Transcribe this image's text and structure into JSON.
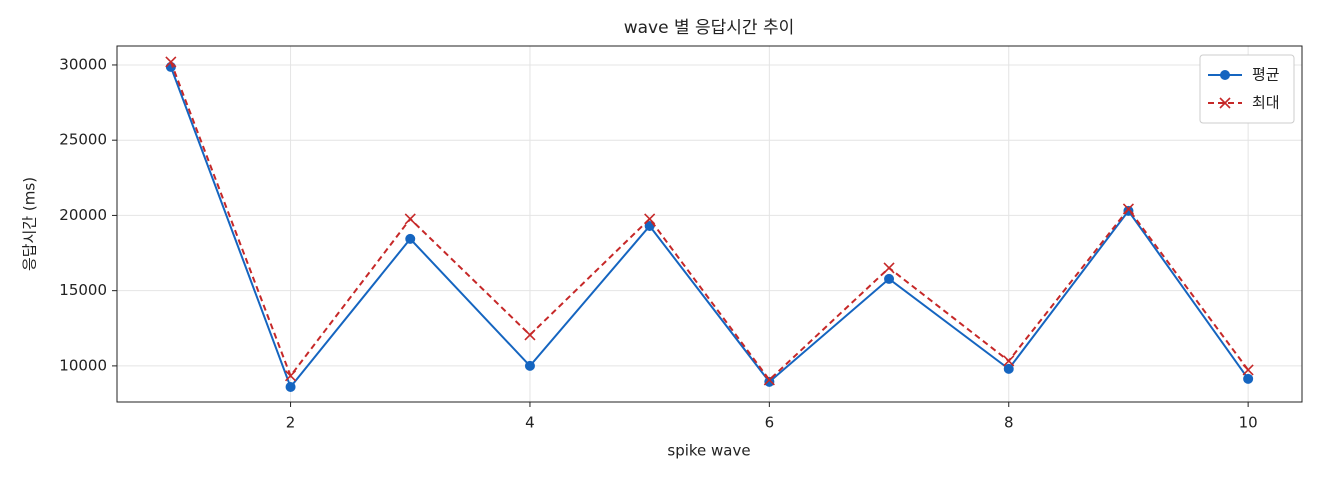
{
  "chart_data": {
    "type": "line",
    "title": "wave 별 응답시간 추이",
    "x_label": "spike wave",
    "y_label": "응답시간 (ms)",
    "x": [
      1,
      2,
      3,
      4,
      5,
      6,
      7,
      8,
      9,
      10
    ],
    "series": [
      {
        "name": "평균",
        "color": "#1565c0",
        "marker": "circle",
        "dashed": false,
        "values": [
          29870,
          8600,
          18440,
          10000,
          19300,
          8940,
          15780,
          9800,
          20300,
          9140
        ]
      },
      {
        "name": "최대",
        "color": "#c62828",
        "marker": "x",
        "dashed": true,
        "values": [
          30200,
          9340,
          19770,
          12060,
          19770,
          9070,
          16510,
          10330,
          20430,
          9730
        ]
      }
    ],
    "xlim": [
      0.55,
      10.45
    ],
    "xticks": [
      2,
      4,
      6,
      8,
      10
    ],
    "ylim": [
      7600,
      31260
    ],
    "yticks": [
      10000,
      15000,
      20000,
      25000,
      30000
    ],
    "grid": true,
    "legend": "upper-right"
  }
}
